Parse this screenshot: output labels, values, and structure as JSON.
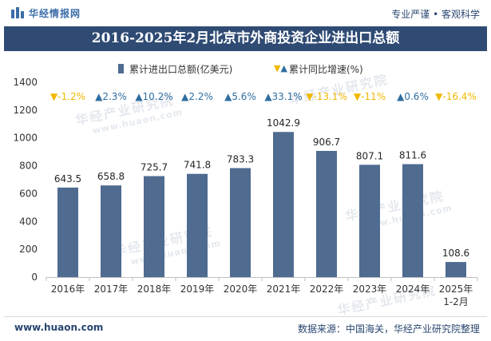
{
  "header": {
    "logo_text": "华经情报网",
    "slogan": "专业严谨 • 客观科学"
  },
  "chart_data": {
    "type": "bar",
    "title": "2016-2025年2月北京市外商投资企业进出口总额",
    "categories": [
      "2016年",
      "2017年",
      "2018年",
      "2019年",
      "2020年",
      "2021年",
      "2022年",
      "2023年",
      "2024年",
      "2025年1-2月"
    ],
    "series": [
      {
        "name": "累计进出口总额(亿美元)",
        "values": [
          643.5,
          658.8,
          725.7,
          741.8,
          783.3,
          1042.9,
          906.7,
          807.1,
          811.6,
          108.6
        ]
      },
      {
        "name": "累计同比增速(%)",
        "values": [
          -1.2,
          2.3,
          10.2,
          2.2,
          5.6,
          33.1,
          -13.1,
          -11,
          0.6,
          -16.4
        ]
      }
    ],
    "ylim": [
      0,
      1400
    ],
    "yticks": [
      0,
      200,
      400,
      600,
      800,
      1000,
      1200,
      1400
    ],
    "grid": false,
    "legend_position": "top",
    "colors": {
      "bar": "#4f6b90",
      "up": "#2e6da0",
      "down": "#f0b800",
      "title_bar": "#2f4b74"
    }
  },
  "watermark": {
    "name": "华经产业研究院",
    "url": "www.huaon.com"
  },
  "footer": {
    "website": "www.huaon.com",
    "source": "数据来源：中国海关，华经产业研究院整理"
  }
}
